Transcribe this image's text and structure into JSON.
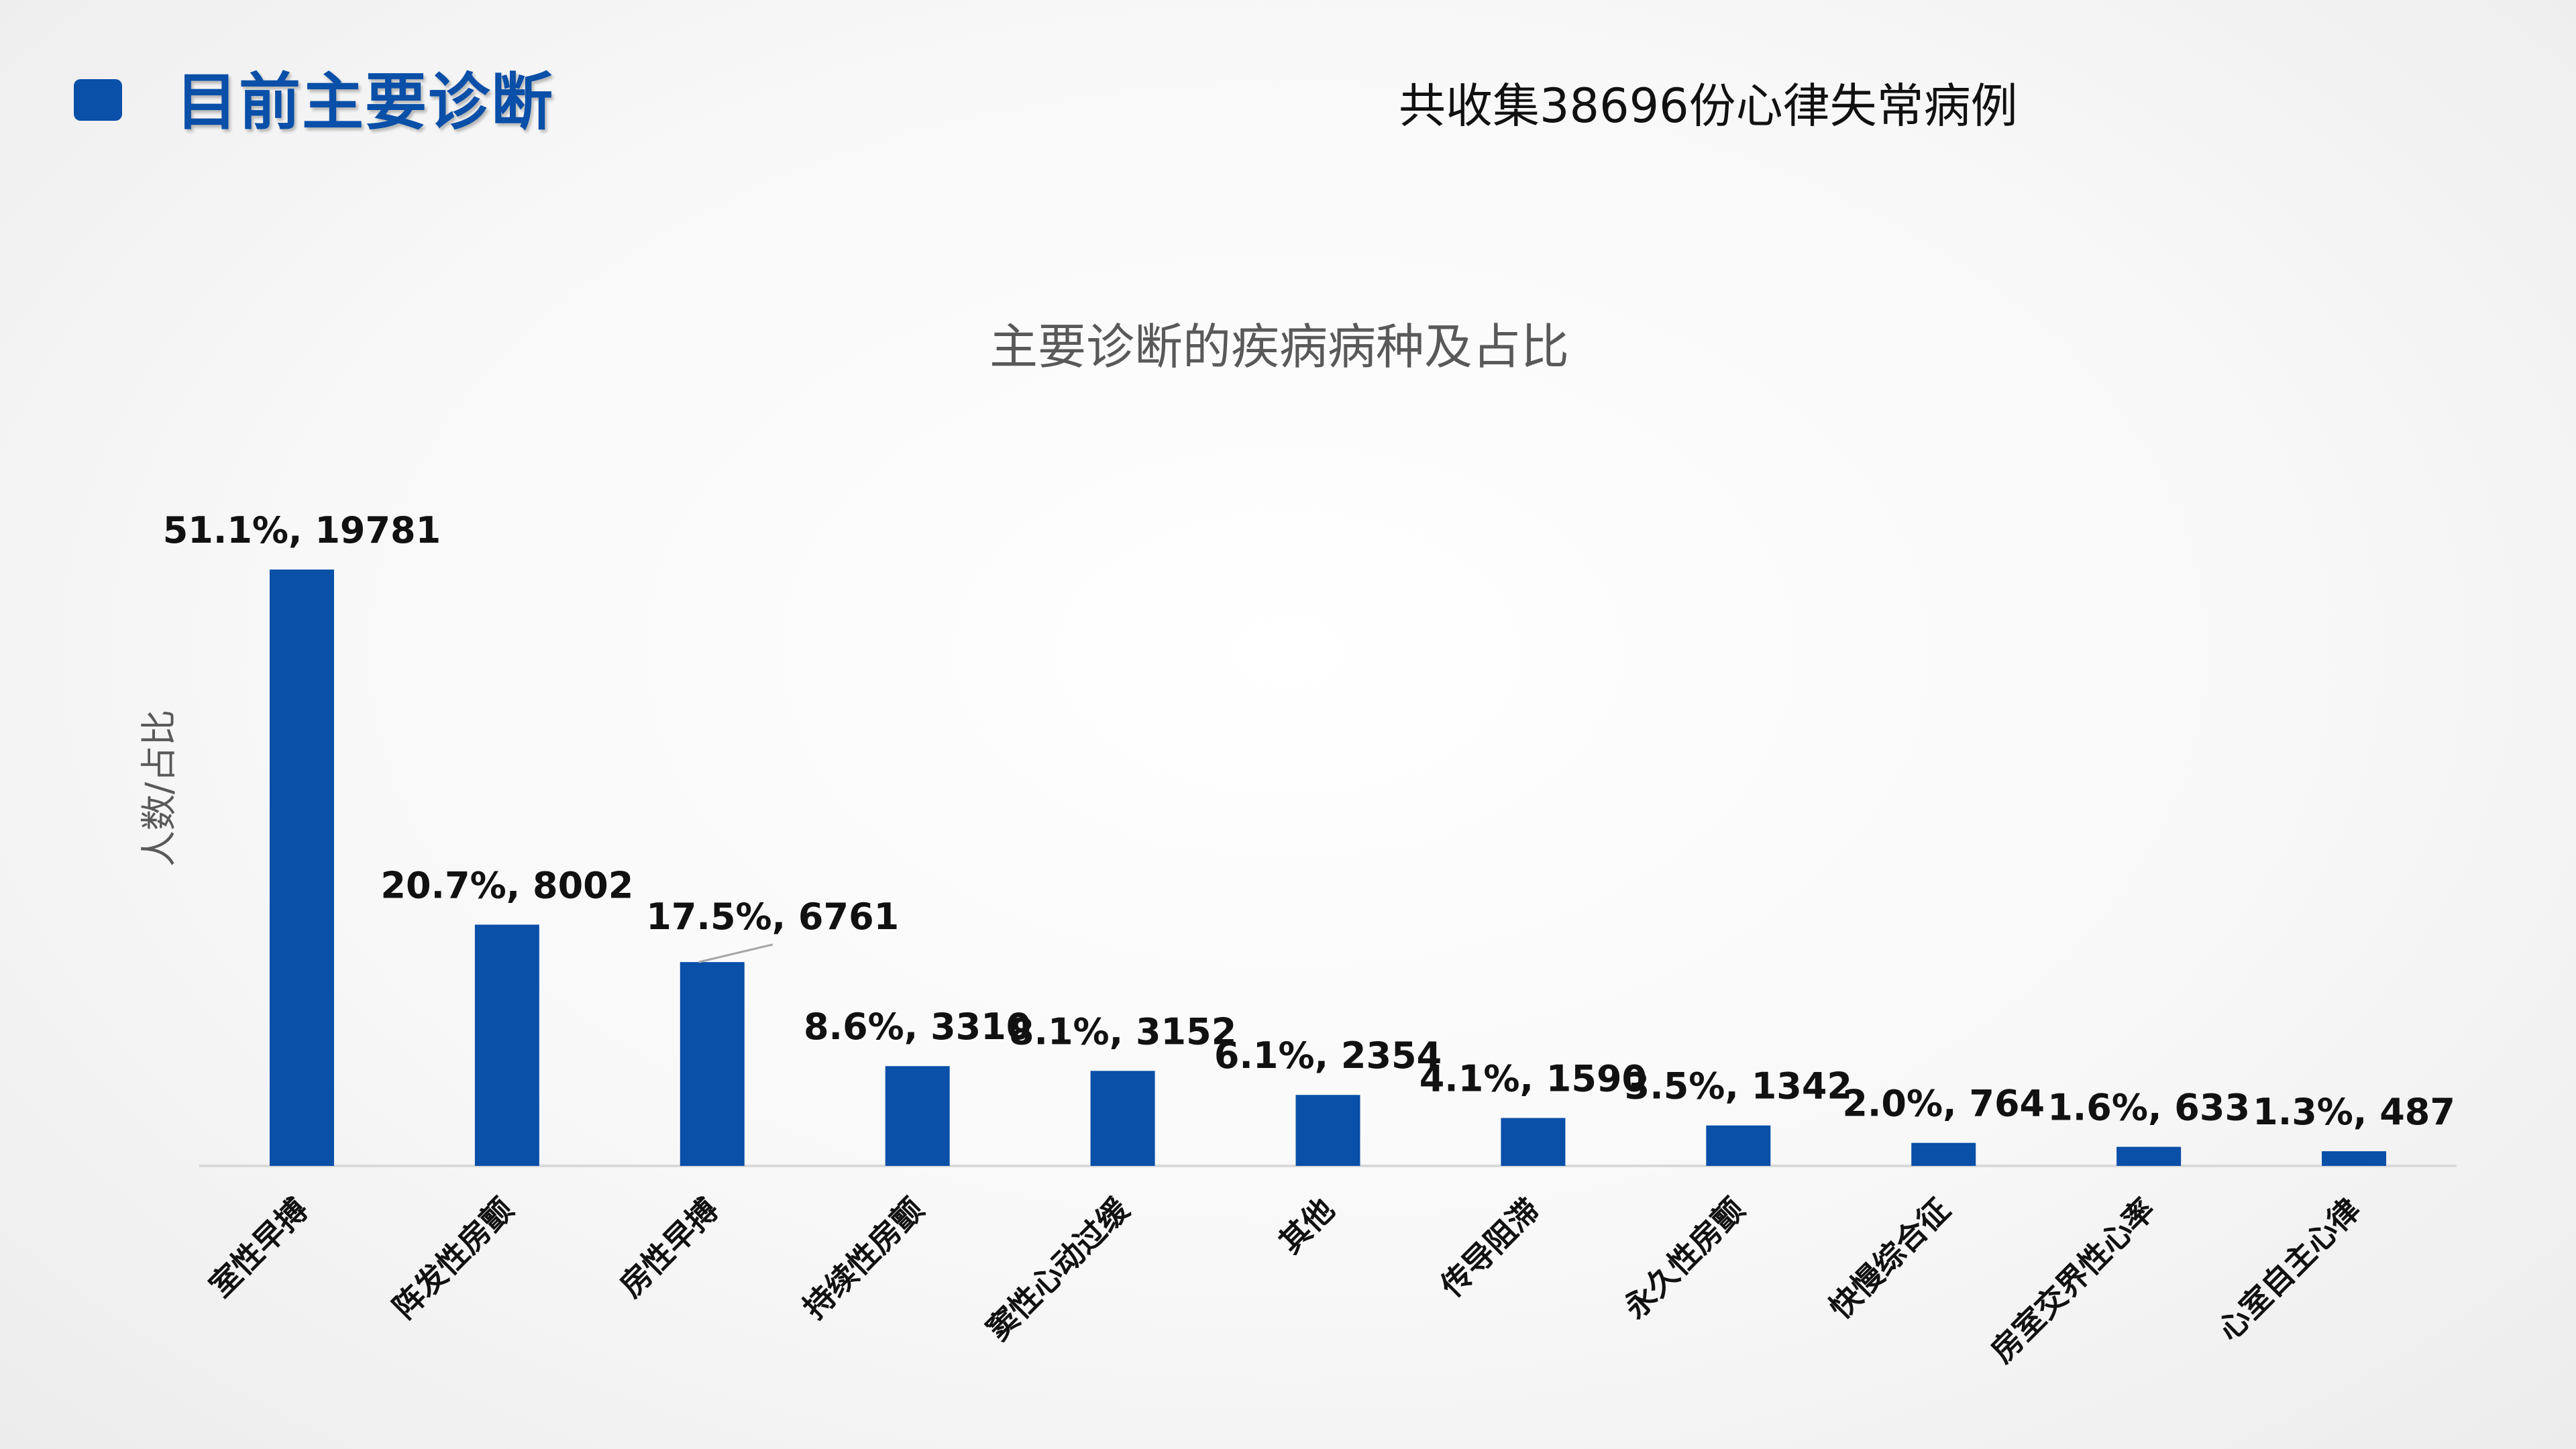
{
  "header": {
    "title": "目前主要诊断",
    "subtitle": "共收集38696份心律失常病例"
  },
  "colors": {
    "accent": "#0a4fa8",
    "bar": "#0a4fa8",
    "axis": "#d9d9d9",
    "title_gray": "#595959"
  },
  "chart_data": {
    "type": "bar",
    "title": "主要诊断的疾病病种及占比",
    "xlabel": "",
    "ylabel": "人数/占比",
    "categories": [
      "室性早搏",
      "阵发性房颤",
      "房性早搏",
      "持续性房颤",
      "窦性心动过缓",
      "其他",
      "传导阻滞",
      "永久性房颤",
      "快慢综合征",
      "房室交界性心率",
      "心室自主心律"
    ],
    "values": [
      19781,
      8002,
      6761,
      3310,
      3152,
      2354,
      1590,
      1342,
      764,
      633,
      487
    ],
    "percentages": [
      "51.1%",
      "20.7%",
      "17.5%",
      "8.6%",
      "8.1%",
      "6.1%",
      "4.1%",
      "3.5%",
      "2.0%",
      "1.6%",
      "1.3%"
    ],
    "data_labels": [
      "51.1%, 19781",
      "20.7%, 8002",
      "17.5%, 6761",
      "8.6%, 3310",
      "8.1%, 3152",
      "6.1%, 2354",
      "4.1%, 1590",
      "3.5%, 1342",
      "2.0%, 764",
      "1.6%, 633",
      "1.3%, 487"
    ],
    "ylim": [
      0,
      19781
    ],
    "grid": false,
    "legend": "none"
  }
}
